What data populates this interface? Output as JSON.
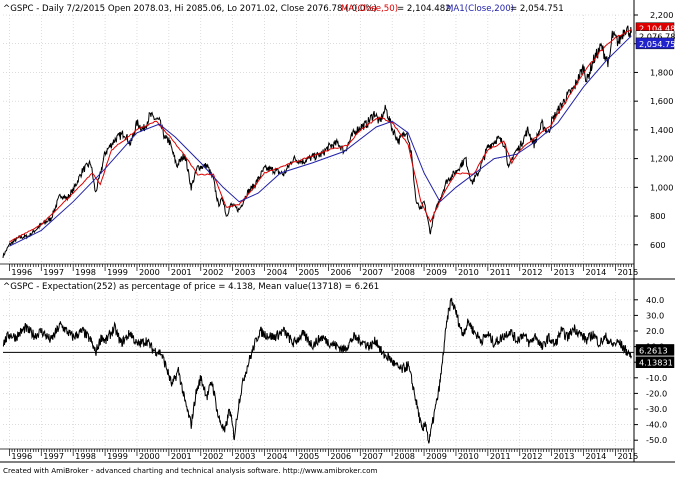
{
  "header": {
    "info_text": "^GSPC - Daily 7/2/2015 Open 2078.03, Hi 2085.06, Lo 2071.02, Close 2076.78 (-0.0%)",
    "ma50_text": "MA(Close,50)",
    "ma50_value": " = 2,104.482,",
    "ma200_text": "MA1(Close,200)",
    "ma200_value": " = 2,054.751"
  },
  "lower_header": {
    "text": "^GSPC - Expectation(252) as percentage of price = 4.138,   Mean value(13718) = 6.261"
  },
  "footer": {
    "text": "Created with AmiBroker - advanced charting and technical analysis software. http://www.amibroker.com"
  },
  "colors": {
    "price": "#000000",
    "ma50": "#dd0000",
    "ma200": "#2222aa",
    "grid": "#c8c8c8",
    "label_close_bg": "#000000",
    "label_ma50_bg": "#dd0000",
    "label_ma200_bg": "#2222cc"
  },
  "chart_data": [
    {
      "type": "line",
      "x_tick_labels": [
        "1996",
        "1997",
        "1998",
        "1999",
        "2000",
        "2001",
        "2002",
        "2003",
        "2004",
        "2005",
        "2006",
        "2007",
        "2008",
        "2009",
        "2010",
        "2011",
        "2012",
        "2013",
        "2014",
        "2015"
      ],
      "y_tick_labels": [
        "600",
        "800",
        "1,000",
        "1,200",
        "1,400",
        "1,600",
        "1,800",
        "2,000",
        "2,200"
      ],
      "ylim": [
        480,
        2200
      ],
      "xlim": [
        1995.8,
        2015.55
      ],
      "last_value_labels": {
        "close": "2,076.78",
        "ma50": "2,104.48",
        "ma200": "2,054.75"
      },
      "series": [
        {
          "name": "MA(Close,50)",
          "color": "#dd0000"
        },
        {
          "name": "MA1(Close,200)",
          "color": "#2222aa"
        }
      ],
      "price_points": [
        [
          1995.8,
          520
        ],
        [
          1996.0,
          600
        ],
        [
          1996.3,
          650
        ],
        [
          1996.6,
          660
        ],
        [
          1997.0,
          740
        ],
        [
          1997.3,
          780
        ],
        [
          1997.6,
          950
        ],
        [
          1997.8,
          920
        ],
        [
          1998.0,
          980
        ],
        [
          1998.3,
          1120
        ],
        [
          1998.55,
          1170
        ],
        [
          1998.7,
          960
        ],
        [
          1998.85,
          1090
        ],
        [
          1999.0,
          1240
        ],
        [
          1999.3,
          1330
        ],
        [
          1999.6,
          1380
        ],
        [
          1999.8,
          1300
        ],
        [
          2000.0,
          1450
        ],
        [
          2000.2,
          1400
        ],
        [
          2000.4,
          1500
        ],
        [
          2000.7,
          1460
        ],
        [
          2000.9,
          1330
        ],
        [
          2001.0,
          1330
        ],
        [
          2001.25,
          1150
        ],
        [
          2001.5,
          1230
        ],
        [
          2001.7,
          1000
        ],
        [
          2001.9,
          1140
        ],
        [
          2002.2,
          1150
        ],
        [
          2002.4,
          1050
        ],
        [
          2002.55,
          880
        ],
        [
          2002.7,
          920
        ],
        [
          2002.8,
          800
        ],
        [
          2002.95,
          880
        ],
        [
          2003.2,
          840
        ],
        [
          2003.45,
          960
        ],
        [
          2003.7,
          1020
        ],
        [
          2004.0,
          1130
        ],
        [
          2004.3,
          1120
        ],
        [
          2004.6,
          1090
        ],
        [
          2004.9,
          1200
        ],
        [
          2005.2,
          1180
        ],
        [
          2005.5,
          1210
        ],
        [
          2005.8,
          1230
        ],
        [
          2006.0,
          1280
        ],
        [
          2006.3,
          1310
        ],
        [
          2006.5,
          1250
        ],
        [
          2006.8,
          1380
        ],
        [
          2007.0,
          1420
        ],
        [
          2007.2,
          1440
        ],
        [
          2007.45,
          1520
        ],
        [
          2007.6,
          1450
        ],
        [
          2007.8,
          1550
        ],
        [
          2008.0,
          1410
        ],
        [
          2008.2,
          1320
        ],
        [
          2008.45,
          1400
        ],
        [
          2008.6,
          1240
        ],
        [
          2008.75,
          900
        ],
        [
          2008.9,
          840
        ],
        [
          2009.0,
          900
        ],
        [
          2009.2,
          680
        ],
        [
          2009.3,
          800
        ],
        [
          2009.5,
          920
        ],
        [
          2009.7,
          1040
        ],
        [
          2010.0,
          1110
        ],
        [
          2010.3,
          1200
        ],
        [
          2010.5,
          1030
        ],
        [
          2010.7,
          1100
        ],
        [
          2011.0,
          1280
        ],
        [
          2011.3,
          1340
        ],
        [
          2011.55,
          1300
        ],
        [
          2011.65,
          1120
        ],
        [
          2011.8,
          1230
        ],
        [
          2012.0,
          1280
        ],
        [
          2012.25,
          1400
        ],
        [
          2012.45,
          1300
        ],
        [
          2012.7,
          1440
        ],
        [
          2012.9,
          1380
        ],
        [
          2013.0,
          1460
        ],
        [
          2013.3,
          1570
        ],
        [
          2013.5,
          1640
        ],
        [
          2013.7,
          1690
        ],
        [
          2014.0,
          1840
        ],
        [
          2014.1,
          1740
        ],
        [
          2014.3,
          1880
        ],
        [
          2014.55,
          1980
        ],
        [
          2014.8,
          1860
        ],
        [
          2014.9,
          2060
        ],
        [
          2015.1,
          2010
        ],
        [
          2015.3,
          2110
        ],
        [
          2015.5,
          2077
        ]
      ],
      "ma50_points": [
        [
          1996.0,
          620
        ],
        [
          1997.0,
          740
        ],
        [
          1998.0,
          960
        ],
        [
          1998.6,
          1100
        ],
        [
          1998.85,
          1020
        ],
        [
          1999.2,
          1260
        ],
        [
          2000.0,
          1400
        ],
        [
          2000.6,
          1460
        ],
        [
          2001.0,
          1360
        ],
        [
          2001.5,
          1220
        ],
        [
          2001.9,
          1090
        ],
        [
          2002.4,
          1090
        ],
        [
          2002.8,
          860
        ],
        [
          2003.2,
          880
        ],
        [
          2003.6,
          980
        ],
        [
          2004.0,
          1100
        ],
        [
          2005.0,
          1180
        ],
        [
          2006.0,
          1260
        ],
        [
          2006.6,
          1290
        ],
        [
          2007.0,
          1400
        ],
        [
          2007.6,
          1490
        ],
        [
          2008.0,
          1450
        ],
        [
          2008.5,
          1300
        ],
        [
          2008.9,
          900
        ],
        [
          2009.2,
          760
        ],
        [
          2009.6,
          950
        ],
        [
          2010.0,
          1100
        ],
        [
          2010.55,
          1090
        ],
        [
          2011.0,
          1260
        ],
        [
          2011.5,
          1320
        ],
        [
          2011.75,
          1170
        ],
        [
          2012.0,
          1260
        ],
        [
          2012.5,
          1350
        ],
        [
          2013.0,
          1440
        ],
        [
          2013.5,
          1620
        ],
        [
          2014.0,
          1800
        ],
        [
          2014.5,
          1940
        ],
        [
          2015.0,
          2040
        ],
        [
          2015.5,
          2104
        ]
      ],
      "ma200_points": [
        [
          1996.0,
          590
        ],
        [
          1997.0,
          700
        ],
        [
          1998.0,
          900
        ],
        [
          1999.0,
          1130
        ],
        [
          2000.0,
          1380
        ],
        [
          2000.7,
          1440
        ],
        [
          2001.2,
          1350
        ],
        [
          2002.0,
          1170
        ],
        [
          2002.7,
          1000
        ],
        [
          2003.2,
          900
        ],
        [
          2003.8,
          960
        ],
        [
          2004.5,
          1100
        ],
        [
          2005.5,
          1170
        ],
        [
          2006.5,
          1250
        ],
        [
          2007.5,
          1420
        ],
        [
          2008.0,
          1460
        ],
        [
          2008.5,
          1380
        ],
        [
          2009.0,
          1100
        ],
        [
          2009.5,
          900
        ],
        [
          2010.0,
          1000
        ],
        [
          2010.6,
          1100
        ],
        [
          2011.2,
          1200
        ],
        [
          2011.9,
          1230
        ],
        [
          2012.5,
          1320
        ],
        [
          2013.2,
          1450
        ],
        [
          2014.0,
          1700
        ],
        [
          2014.7,
          1880
        ],
        [
          2015.5,
          2055
        ]
      ]
    },
    {
      "type": "line",
      "x_tick_labels": [
        "1996",
        "1997",
        "1998",
        "1999",
        "2000",
        "2001",
        "2002",
        "2003",
        "2004",
        "2005",
        "2006",
        "2007",
        "2008",
        "2009",
        "2010",
        "2011",
        "2012",
        "2013",
        "2014",
        "2015"
      ],
      "y_tick_labels": [
        "40.0",
        "30.0",
        "20.0",
        "10.0",
        "0.0",
        "-10.0",
        "-20.0",
        "-30.0",
        "-40.0",
        "-50.0"
      ],
      "ylim": [
        -55,
        45
      ],
      "xlim": [
        1995.8,
        2015.55
      ],
      "mean_value": 6.2613,
      "last_value_labels": {
        "mean": "6.2613",
        "last": "4.13831"
      },
      "expectation_points": [
        [
          1995.8,
          12
        ],
        [
          1996.0,
          18
        ],
        [
          1996.2,
          16
        ],
        [
          1996.5,
          22
        ],
        [
          1996.8,
          17
        ],
        [
          1997.0,
          20
        ],
        [
          1997.3,
          14
        ],
        [
          1997.6,
          24
        ],
        [
          1997.9,
          18
        ],
        [
          1998.0,
          16
        ],
        [
          1998.3,
          20
        ],
        [
          1998.55,
          14
        ],
        [
          1998.7,
          6
        ],
        [
          1998.9,
          17
        ],
        [
          1999.0,
          13
        ],
        [
          1999.3,
          22
        ],
        [
          1999.5,
          12
        ],
        [
          1999.8,
          19
        ],
        [
          2000.0,
          11
        ],
        [
          2000.3,
          14
        ],
        [
          2000.5,
          8
        ],
        [
          2000.75,
          6
        ],
        [
          2000.9,
          -2
        ],
        [
          2001.1,
          -15
        ],
        [
          2001.3,
          -5
        ],
        [
          2001.5,
          -25
        ],
        [
          2001.7,
          -40
        ],
        [
          2001.85,
          -20
        ],
        [
          2002.0,
          -10
        ],
        [
          2002.2,
          -22
        ],
        [
          2002.35,
          -12
        ],
        [
          2002.55,
          -35
        ],
        [
          2002.75,
          -45
        ],
        [
          2002.9,
          -30
        ],
        [
          2003.05,
          -48
        ],
        [
          2003.2,
          -25
        ],
        [
          2003.35,
          -10
        ],
        [
          2003.5,
          0
        ],
        [
          2003.7,
          12
        ],
        [
          2003.85,
          20
        ],
        [
          2004.0,
          18
        ],
        [
          2004.3,
          16
        ],
        [
          2004.6,
          20
        ],
        [
          2004.9,
          12
        ],
        [
          2005.2,
          18
        ],
        [
          2005.5,
          11
        ],
        [
          2005.8,
          16
        ],
        [
          2006.0,
          13
        ],
        [
          2006.3,
          10
        ],
        [
          2006.5,
          8
        ],
        [
          2006.8,
          16
        ],
        [
          2007.0,
          14
        ],
        [
          2007.3,
          10
        ],
        [
          2007.5,
          14
        ],
        [
          2007.7,
          5
        ],
        [
          2007.9,
          3
        ],
        [
          2008.1,
          -2
        ],
        [
          2008.3,
          -5
        ],
        [
          2008.5,
          -2
        ],
        [
          2008.65,
          -15
        ],
        [
          2008.8,
          -30
        ],
        [
          2008.95,
          -45
        ],
        [
          2009.05,
          -38
        ],
        [
          2009.15,
          -52
        ],
        [
          2009.3,
          -35
        ],
        [
          2009.45,
          -20
        ],
        [
          2009.55,
          -5
        ],
        [
          2009.65,
          15
        ],
        [
          2009.75,
          30
        ],
        [
          2009.85,
          40
        ],
        [
          2010.0,
          32
        ],
        [
          2010.2,
          18
        ],
        [
          2010.4,
          26
        ],
        [
          2010.55,
          20
        ],
        [
          2010.8,
          14
        ],
        [
          2011.0,
          18
        ],
        [
          2011.2,
          12
        ],
        [
          2011.45,
          16
        ],
        [
          2011.7,
          20
        ],
        [
          2011.9,
          14
        ],
        [
          2012.1,
          18
        ],
        [
          2012.3,
          12
        ],
        [
          2012.5,
          17
        ],
        [
          2012.7,
          9
        ],
        [
          2012.9,
          16
        ],
        [
          2013.1,
          11
        ],
        [
          2013.3,
          20
        ],
        [
          2013.5,
          16
        ],
        [
          2013.7,
          22
        ],
        [
          2013.9,
          18
        ],
        [
          2014.1,
          14
        ],
        [
          2014.3,
          18
        ],
        [
          2014.5,
          12
        ],
        [
          2014.7,
          16
        ],
        [
          2014.9,
          11
        ],
        [
          2015.1,
          13
        ],
        [
          2015.3,
          8
        ],
        [
          2015.5,
          4.1
        ]
      ]
    }
  ]
}
